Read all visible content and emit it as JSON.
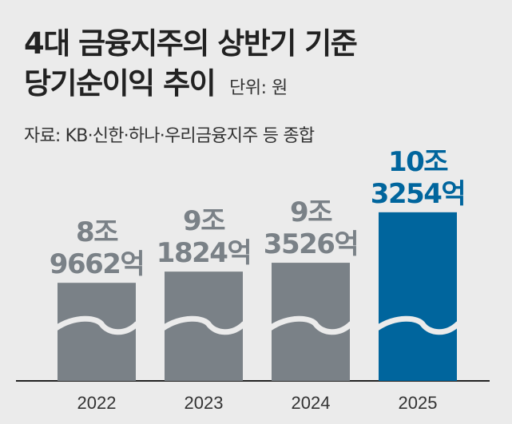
{
  "title_line1": "4대 금융지주의 상반기 기준",
  "title_line2": "당기순이익 추이",
  "unit_label": "단위: 원",
  "source": "자료: KB·신한·하나·우리금융지주 등 종합",
  "colors": {
    "background": "#ebebeb",
    "bar_default": "#7a8187",
    "bar_highlight": "#00659d",
    "label_default": "#7a8187",
    "label_highlight": "#00659d",
    "axis": "#222222"
  },
  "chart_data": {
    "type": "bar",
    "categories": [
      "2022",
      "2023",
      "2024",
      "2025"
    ],
    "values": [
      89662,
      91824,
      93526,
      103254
    ],
    "value_unit": "억원",
    "value_labels": [
      [
        "8조",
        "9662억"
      ],
      [
        "9조",
        "1824억"
      ],
      [
        "9조",
        "3526억"
      ],
      [
        "10조",
        "3254억"
      ]
    ],
    "highlight_index": 3,
    "axis_break": true,
    "title": "4대 금융지주의 상반기 기준 당기순이익 추이",
    "xlabel": "",
    "ylabel": "",
    "ylim": [
      80000,
      105000
    ],
    "grid": false,
    "legend": "none"
  }
}
